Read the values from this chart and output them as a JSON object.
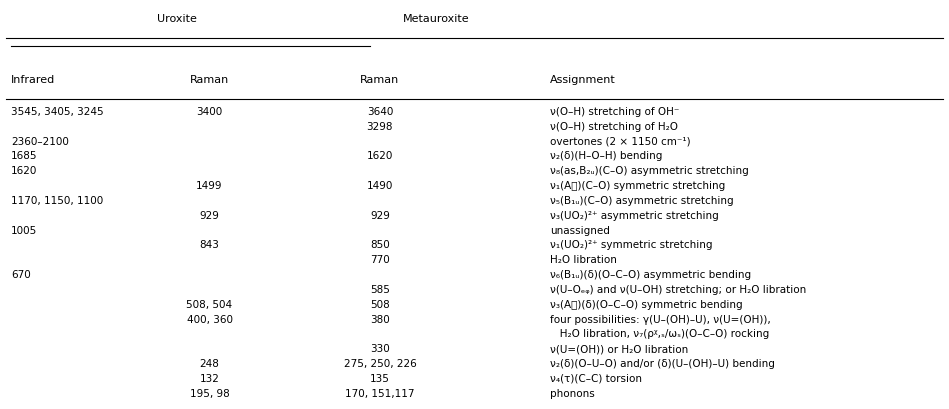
{
  "title_uroxite": "Uroxite",
  "title_metauroxite": "Metauroxite",
  "col_headers": [
    "Infrared",
    "Raman",
    "Raman",
    "Assignment"
  ],
  "rows": [
    [
      "3545, 3405, 3245",
      "3400",
      "3640",
      "ν(O–H) stretching of OH⁻"
    ],
    [
      "",
      "",
      "3298",
      "ν(O–H) stretching of H₂O"
    ],
    [
      "2360–2100",
      "",
      "",
      "overtones (2 × 1150 cm⁻¹)"
    ],
    [
      "1685",
      "",
      "1620",
      "ν₂(δ)(H–O–H) bending"
    ],
    [
      "1620",
      "",
      "",
      "ν₈(as,B₂ᵤ)(C–O) asymmetric stretching"
    ],
    [
      "",
      "1499",
      "1490",
      "ν₁(Aᶍ)(C–O) symmetric stretching"
    ],
    [
      "1170, 1150, 1100",
      "",
      "",
      "ν₅(B₁ᵤ)(C–O) asymmetric stretching"
    ],
    [
      "",
      "929",
      "929",
      "ν₃(UO₂)²⁺ asymmetric stretching"
    ],
    [
      "1005",
      "",
      "",
      "unassigned"
    ],
    [
      "",
      "843",
      "850",
      "ν₁(UO₂)²⁺ symmetric stretching"
    ],
    [
      "",
      "",
      "770",
      "H₂O libration"
    ],
    [
      "670",
      "",
      "",
      "ν₆(B₁ᵤ)(δ)(O–C–O) asymmetric bending"
    ],
    [
      "",
      "",
      "585",
      "ν(U–Oₑᵩ) and ν(U–OH) stretching; or H₂O libration"
    ],
    [
      "",
      "508, 504",
      "508",
      "ν₃(Aᶍ)(δ)(O–C–O) symmetric bending"
    ],
    [
      "",
      "400, 360",
      "380",
      "four possibilities: γ(U–(OH)–U), ν(U=(OH)),"
    ],
    [
      "",
      "",
      "",
      "   H₂O libration, ν₇(ρᵡ,ₛ/ωₛ)(O–C–O) rocking"
    ],
    [
      "",
      "",
      "330",
      "ν(U=(OH)) or H₂O libration"
    ],
    [
      "",
      "248",
      "275, 250, 226",
      "ν₂(δ)(O–U–O) and/or (δ)(U–(OH)–U) bending"
    ],
    [
      "",
      "132",
      "135",
      "ν₄(τ)(C–C) torsion"
    ],
    [
      "",
      "195, 98",
      "170, 151,117",
      "phonons"
    ]
  ],
  "background_color": "#ffffff",
  "text_color": "#000000",
  "fontsize": 7.5,
  "header_fontsize": 8.0
}
